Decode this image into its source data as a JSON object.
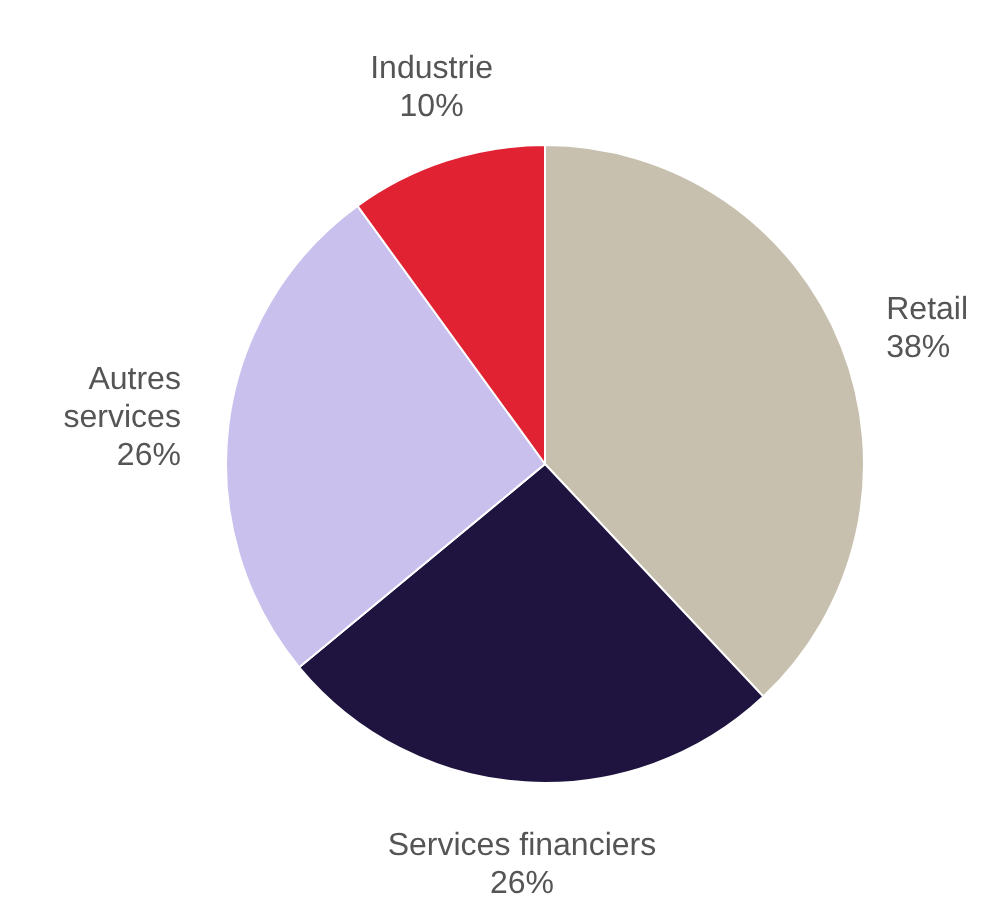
{
  "chart_data": {
    "type": "pie",
    "categories": [
      "Retail",
      "Services financiers",
      "Autres services",
      "Industrie"
    ],
    "values": [
      38,
      26,
      26,
      10
    ],
    "value_labels": [
      "38%",
      "26%",
      "26%",
      "10%"
    ],
    "colors": [
      "#c8c0ae",
      "#1f1440",
      "#c9c0ee",
      "#e02232"
    ],
    "legend": false
  }
}
